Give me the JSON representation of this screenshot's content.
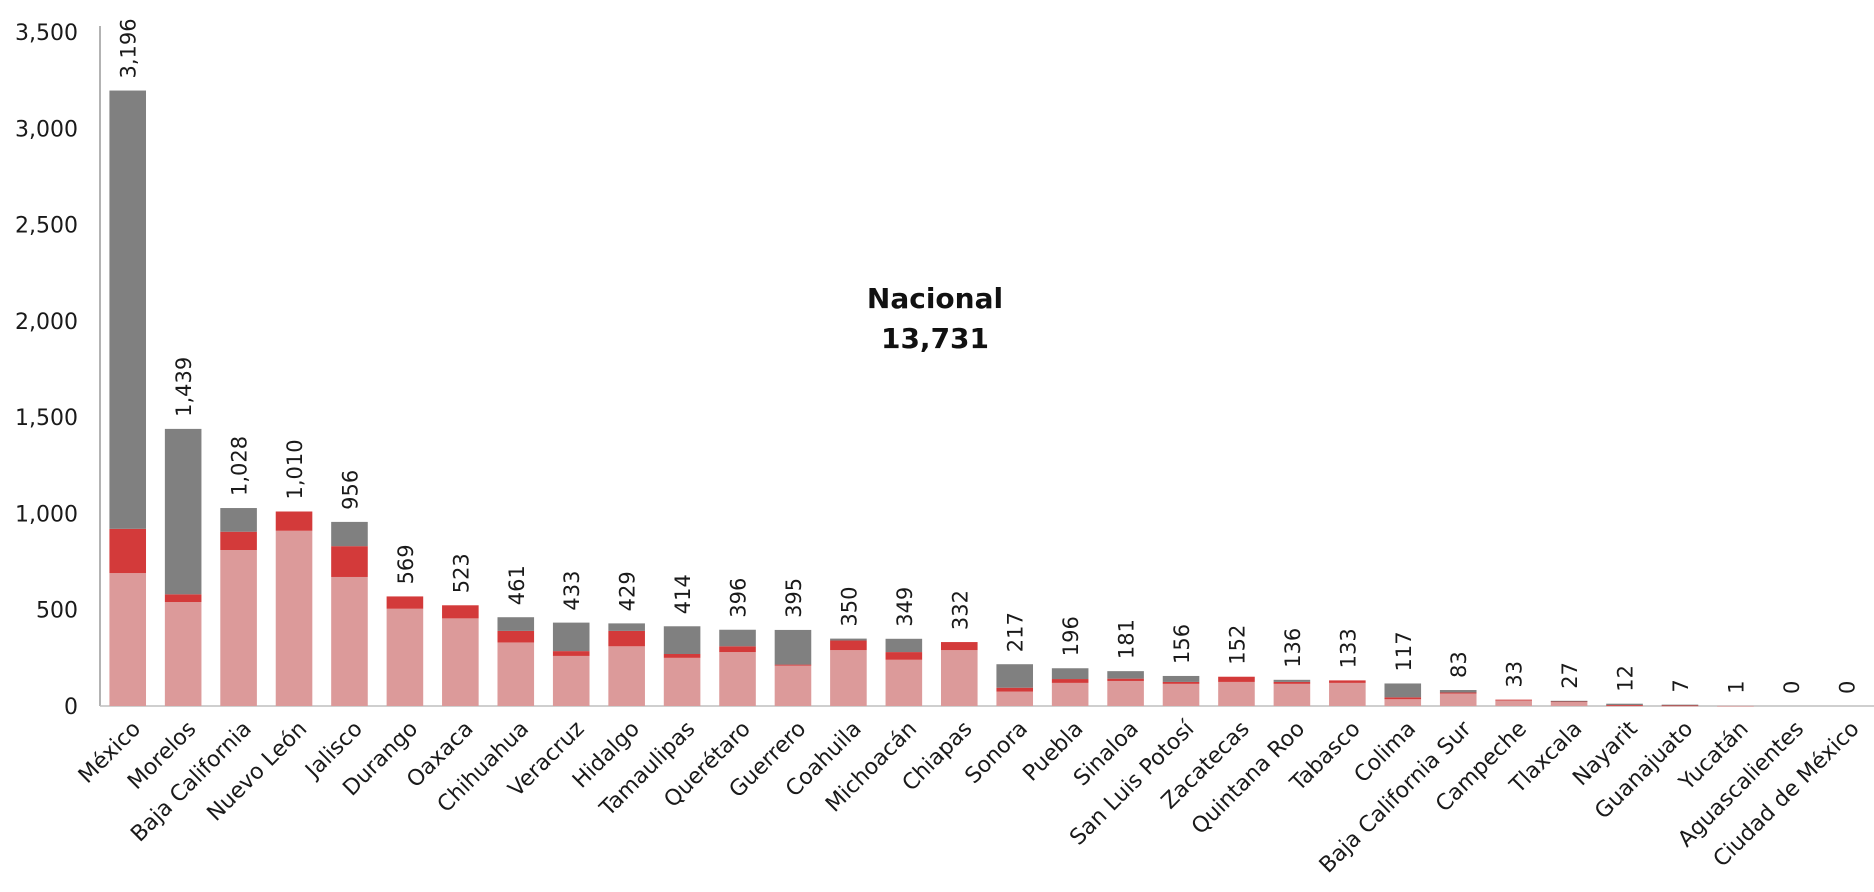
{
  "chart_data": {
    "type": "bar",
    "stacked": true,
    "ylim": [
      0,
      3500
    ],
    "yticks": [
      0,
      500,
      1000,
      1500,
      2000,
      2500,
      3000,
      3500
    ],
    "ytick_labels": [
      "0",
      "500",
      "1,000",
      "1,500",
      "2,000",
      "2,500",
      "3,000",
      "3,500"
    ],
    "grid": false,
    "legend": "none",
    "annotation": {
      "line1": "Nacional",
      "line2": "13,731"
    },
    "categories": [
      "México",
      "Morelos",
      "Baja California",
      "Nuevo León",
      "Jalisco",
      "Durango",
      "Oaxaca",
      "Chihuahua",
      "Veracruz",
      "Hidalgo",
      "Tamaulipas",
      "Querétaro",
      "Guerrero",
      "Coahuila",
      "Michoacán",
      "Chiapas",
      "Sonora",
      "Puebla",
      "Sinaloa",
      "San Luis Potosí",
      "Zacatecas",
      "Quintana Roo",
      "Tabasco",
      "Colima",
      "Baja California Sur",
      "Campeche",
      "Tlaxcala",
      "Nayarit",
      "Guanajuato",
      "Yucatán",
      "Aguascalientes",
      "Ciudad de México"
    ],
    "total_labels": [
      "3,196",
      "1,439",
      "1,028",
      "1,010",
      "956",
      "569",
      "523",
      "461",
      "433",
      "429",
      "414",
      "396",
      "395",
      "350",
      "349",
      "332",
      "217",
      "196",
      "181",
      "156",
      "152",
      "136",
      "133",
      "117",
      "83",
      "33",
      "27",
      "12",
      "7",
      "1",
      "0",
      "0"
    ],
    "series": [
      {
        "color": "#dc9a9a",
        "values": [
          690,
          540,
          810,
          910,
          670,
          505,
          455,
          330,
          260,
          310,
          250,
          280,
          210,
          290,
          240,
          290,
          75,
          120,
          130,
          115,
          125,
          115,
          120,
          35,
          65,
          30,
          20,
          3,
          2,
          1,
          0,
          0
        ]
      },
      {
        "color": "#d33a3a",
        "values": [
          230,
          40,
          95,
          100,
          160,
          64,
          68,
          60,
          25,
          80,
          20,
          30,
          5,
          50,
          40,
          42,
          20,
          20,
          12,
          10,
          27,
          10,
          13,
          10,
          5,
          3,
          5,
          2,
          2,
          0,
          0,
          0
        ]
      },
      {
        "color": "#808080",
        "values": [
          2276,
          859,
          123,
          0,
          126,
          0,
          0,
          71,
          148,
          39,
          144,
          86,
          180,
          10,
          69,
          0,
          122,
          56,
          39,
          31,
          0,
          11,
          0,
          72,
          13,
          0,
          2,
          7,
          3,
          0,
          0,
          0
        ]
      }
    ]
  }
}
